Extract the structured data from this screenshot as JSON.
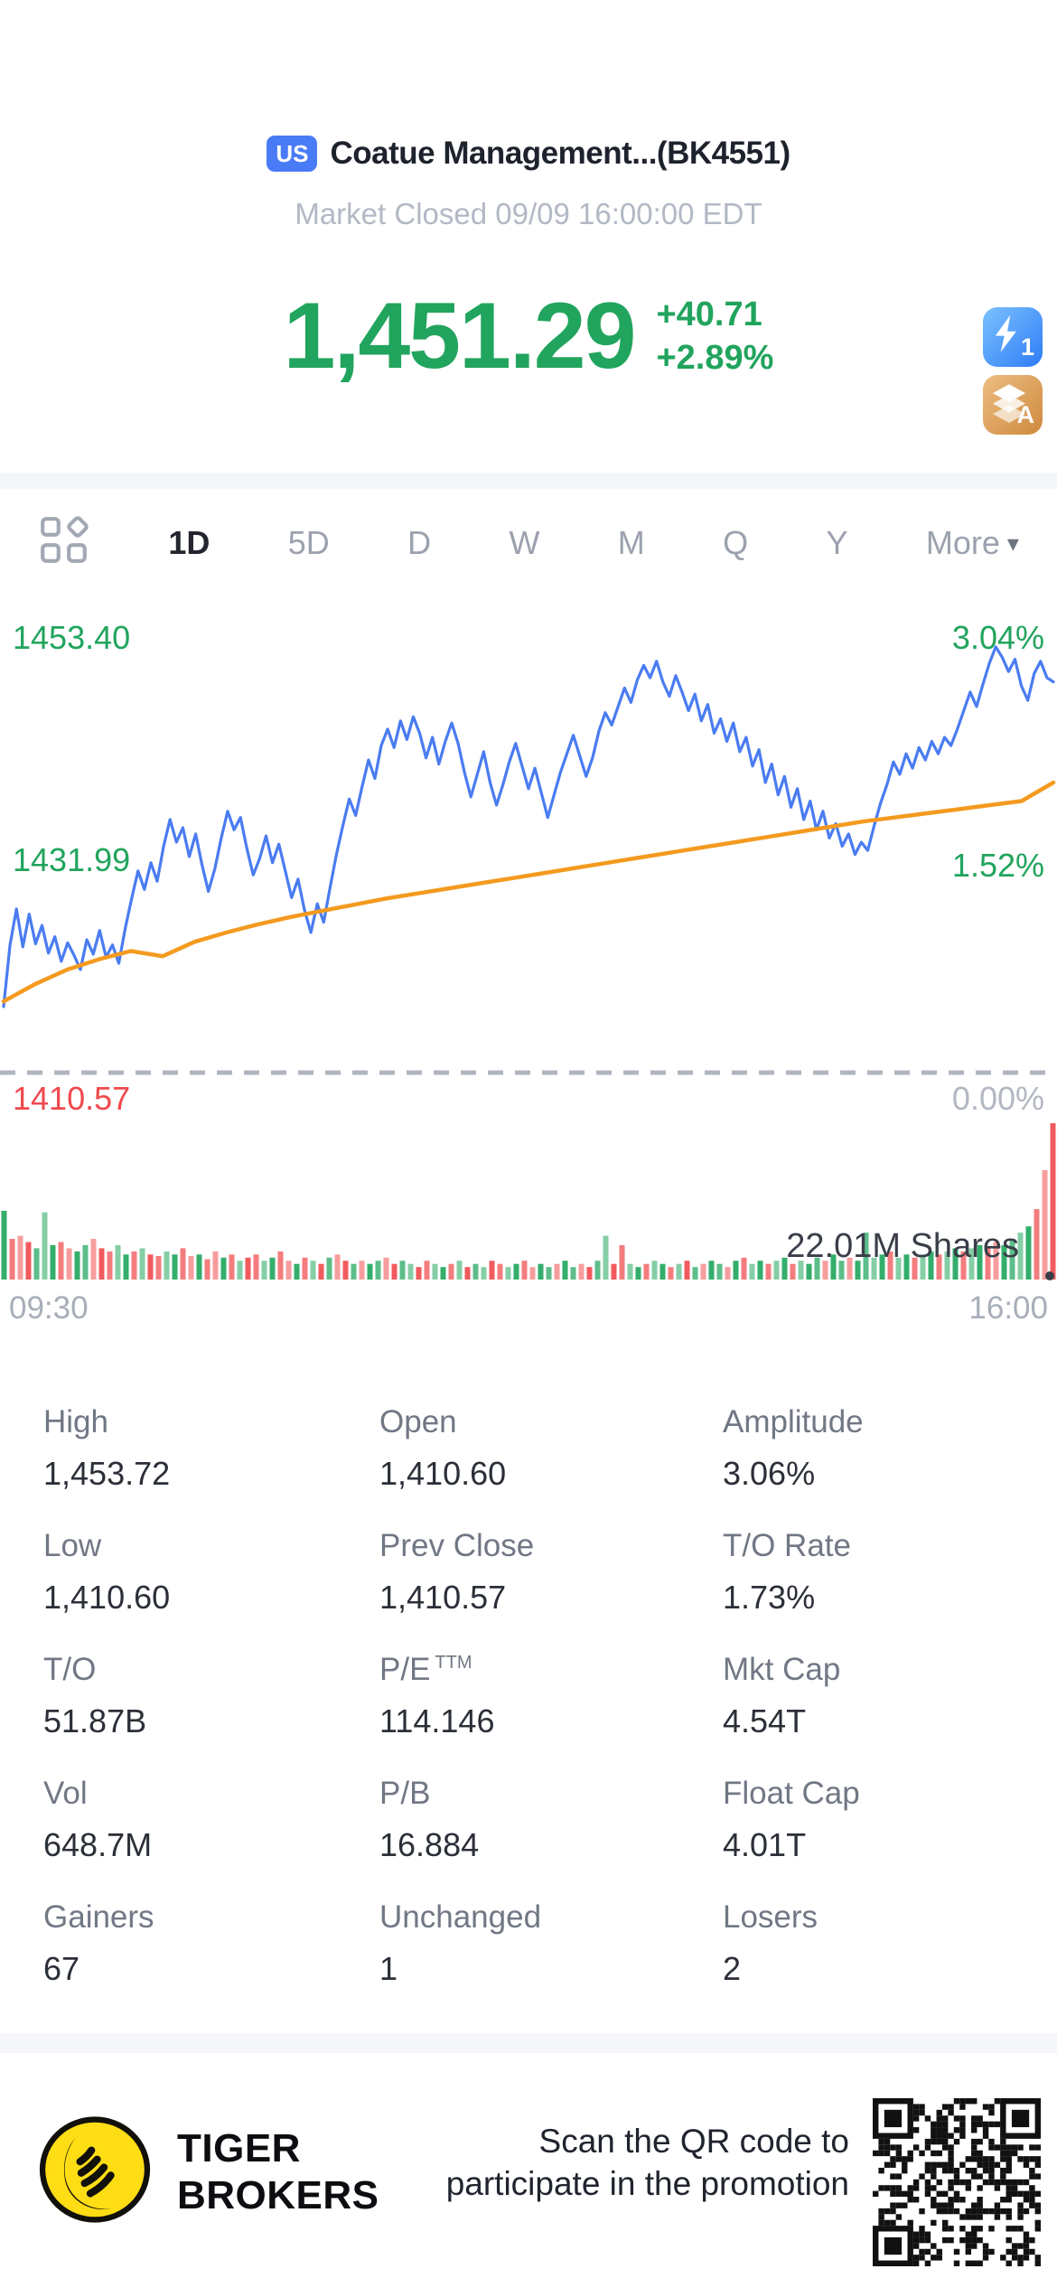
{
  "header": {
    "exchange_badge": "US",
    "title": "Coatue Management...(BK4551)",
    "status_line": "Market Closed 09/09 16:00:00 EDT",
    "price": "1,451.29",
    "change": "+40.71",
    "change_pct": "+2.89%",
    "flash_badge_number": "1",
    "layers_badge_letter": "A"
  },
  "tabs": {
    "items": [
      "1D",
      "5D",
      "D",
      "W",
      "M",
      "Q",
      "Y"
    ],
    "active": "1D",
    "more_label": "More"
  },
  "chart_data": {
    "type": "line",
    "title": "Intraday 1D price chart with average price line and volume",
    "x_axis": {
      "start": "09:30",
      "end": "16:00"
    },
    "ylim": [
      1410.57,
      1453.4
    ],
    "y_labels": {
      "top": "1453.40",
      "mid": "1431.99",
      "bottom": "1410.57"
    },
    "pct_labels": {
      "top": "3.04%",
      "mid": "1.52%",
      "bottom": "0.00%"
    },
    "volume_annotation": "22.01M Shares",
    "grid": "off",
    "series": [
      {
        "name": "price",
        "color": "#4a7cf1",
        "width": 3.2,
        "values": [
          1417.0,
          1423.0,
          1426.5,
          1422.8,
          1426.0,
          1423.1,
          1424.9,
          1422.2,
          1423.8,
          1421.4,
          1423.2,
          1422.0,
          1420.6,
          1423.5,
          1422.1,
          1424.4,
          1421.8,
          1423.0,
          1421.2,
          1424.6,
          1427.5,
          1430.2,
          1428.4,
          1431.0,
          1429.2,
          1432.6,
          1435.2,
          1433.0,
          1434.4,
          1431.6,
          1433.8,
          1430.8,
          1428.2,
          1430.4,
          1433.4,
          1436.0,
          1434.2,
          1435.4,
          1432.4,
          1429.8,
          1431.4,
          1433.6,
          1431.0,
          1432.8,
          1430.2,
          1427.6,
          1429.4,
          1426.4,
          1424.2,
          1427.0,
          1425.2,
          1428.6,
          1431.8,
          1434.6,
          1437.2,
          1435.6,
          1438.4,
          1441.0,
          1439.2,
          1442.4,
          1444.0,
          1442.2,
          1444.8,
          1443.0,
          1445.2,
          1443.6,
          1441.2,
          1443.2,
          1440.6,
          1442.8,
          1444.6,
          1442.6,
          1439.8,
          1437.4,
          1439.6,
          1441.8,
          1438.8,
          1436.6,
          1438.6,
          1440.8,
          1442.6,
          1440.4,
          1438.2,
          1440.2,
          1437.8,
          1435.4,
          1437.6,
          1439.8,
          1441.6,
          1443.4,
          1441.4,
          1439.4,
          1441.2,
          1443.8,
          1445.6,
          1444.4,
          1446.2,
          1448.0,
          1446.6,
          1448.8,
          1450.2,
          1449.0,
          1450.6,
          1448.6,
          1447.2,
          1449.2,
          1447.6,
          1445.8,
          1447.4,
          1444.8,
          1446.4,
          1443.6,
          1445.0,
          1442.8,
          1444.6,
          1441.8,
          1443.2,
          1440.4,
          1442.0,
          1438.8,
          1440.6,
          1437.6,
          1439.4,
          1436.4,
          1438.2,
          1435.2,
          1437.0,
          1434.2,
          1436.0,
          1433.4,
          1434.8,
          1432.6,
          1433.8,
          1431.8,
          1433.0,
          1432.2,
          1434.6,
          1436.8,
          1438.6,
          1440.8,
          1439.6,
          1441.6,
          1440.2,
          1442.2,
          1441.0,
          1442.8,
          1441.6,
          1443.2,
          1442.4,
          1444.0,
          1445.8,
          1447.6,
          1446.2,
          1448.4,
          1450.4,
          1452.0,
          1451.0,
          1449.6,
          1450.8,
          1448.2,
          1446.8,
          1449.4,
          1450.6,
          1449.0,
          1448.6
        ]
      },
      {
        "name": "avg_price",
        "color": "#f49a1f",
        "width": 4.5,
        "values": [
          1417.5,
          1419.2,
          1420.6,
          1421.6,
          1422.4,
          1421.9,
          1423.3,
          1424.2,
          1425.0,
          1425.7,
          1426.3,
          1426.9,
          1427.5,
          1428.0,
          1428.5,
          1429.0,
          1429.5,
          1430.0,
          1430.5,
          1431.0,
          1431.5,
          1432.0,
          1432.5,
          1433.0,
          1433.5,
          1434.0,
          1434.5,
          1435.0,
          1435.4,
          1435.8,
          1436.2,
          1436.6,
          1437.0,
          1438.8
        ]
      }
    ],
    "volume": {
      "up_color": "#33ae6b",
      "down_color": "#f15b5e",
      "bars": [
        [
          44,
          "g"
        ],
        [
          26,
          "r"
        ],
        [
          28,
          "r"
        ],
        [
          24,
          "r"
        ],
        [
          20,
          "g"
        ],
        [
          43,
          "g"
        ],
        [
          22,
          "g"
        ],
        [
          24,
          "r"
        ],
        [
          20,
          "r"
        ],
        [
          18,
          "g"
        ],
        [
          22,
          "g"
        ],
        [
          26,
          "r"
        ],
        [
          20,
          "r"
        ],
        [
          18,
          "r"
        ],
        [
          22,
          "g"
        ],
        [
          16,
          "g"
        ],
        [
          18,
          "r"
        ],
        [
          20,
          "g"
        ],
        [
          16,
          "r"
        ],
        [
          15,
          "r"
        ],
        [
          18,
          "g"
        ],
        [
          16,
          "g"
        ],
        [
          20,
          "r"
        ],
        [
          15,
          "r"
        ],
        [
          16,
          "g"
        ],
        [
          13,
          "r"
        ],
        [
          18,
          "r"
        ],
        [
          14,
          "g"
        ],
        [
          16,
          "r"
        ],
        [
          12,
          "g"
        ],
        [
          14,
          "r"
        ],
        [
          16,
          "r"
        ],
        [
          12,
          "g"
        ],
        [
          14,
          "g"
        ],
        [
          18,
          "r"
        ],
        [
          12,
          "r"
        ],
        [
          10,
          "g"
        ],
        [
          14,
          "r"
        ],
        [
          12,
          "g"
        ],
        [
          10,
          "r"
        ],
        [
          14,
          "g"
        ],
        [
          16,
          "r"
        ],
        [
          12,
          "r"
        ],
        [
          10,
          "g"
        ],
        [
          12,
          "r"
        ],
        [
          10,
          "g"
        ],
        [
          12,
          "g"
        ],
        [
          14,
          "r"
        ],
        [
          10,
          "r"
        ],
        [
          12,
          "g"
        ],
        [
          10,
          "g"
        ],
        [
          8,
          "r"
        ],
        [
          12,
          "r"
        ],
        [
          10,
          "g"
        ],
        [
          8,
          "g"
        ],
        [
          10,
          "r"
        ],
        [
          12,
          "g"
        ],
        [
          8,
          "r"
        ],
        [
          10,
          "g"
        ],
        [
          8,
          "g"
        ],
        [
          12,
          "r"
        ],
        [
          10,
          "r"
        ],
        [
          8,
          "g"
        ],
        [
          10,
          "g"
        ],
        [
          12,
          "r"
        ],
        [
          8,
          "r"
        ],
        [
          10,
          "g"
        ],
        [
          8,
          "g"
        ],
        [
          10,
          "r"
        ],
        [
          12,
          "g"
        ],
        [
          8,
          "g"
        ],
        [
          10,
          "r"
        ],
        [
          8,
          "r"
        ],
        [
          12,
          "g"
        ],
        [
          28,
          "g"
        ],
        [
          10,
          "r"
        ],
        [
          22,
          "r"
        ],
        [
          10,
          "g"
        ],
        [
          8,
          "g"
        ],
        [
          10,
          "r"
        ],
        [
          12,
          "g"
        ],
        [
          10,
          "g"
        ],
        [
          8,
          "r"
        ],
        [
          10,
          "g"
        ],
        [
          12,
          "r"
        ],
        [
          8,
          "g"
        ],
        [
          10,
          "r"
        ],
        [
          12,
          "g"
        ],
        [
          10,
          "g"
        ],
        [
          8,
          "r"
        ],
        [
          12,
          "g"
        ],
        [
          14,
          "r"
        ],
        [
          10,
          "g"
        ],
        [
          12,
          "g"
        ],
        [
          10,
          "r"
        ],
        [
          12,
          "g"
        ],
        [
          14,
          "g"
        ],
        [
          10,
          "r"
        ],
        [
          12,
          "g"
        ],
        [
          10,
          "g"
        ],
        [
          14,
          "g"
        ],
        [
          12,
          "r"
        ],
        [
          16,
          "g"
        ],
        [
          12,
          "g"
        ],
        [
          14,
          "r"
        ],
        [
          12,
          "g"
        ],
        [
          30,
          "g"
        ],
        [
          14,
          "g"
        ],
        [
          16,
          "g"
        ],
        [
          18,
          "r"
        ],
        [
          14,
          "g"
        ],
        [
          16,
          "g"
        ],
        [
          14,
          "r"
        ],
        [
          16,
          "g"
        ],
        [
          18,
          "g"
        ],
        [
          16,
          "r"
        ],
        [
          18,
          "g"
        ],
        [
          20,
          "g"
        ],
        [
          18,
          "r"
        ],
        [
          20,
          "g"
        ],
        [
          22,
          "g"
        ],
        [
          20,
          "r"
        ],
        [
          24,
          "r"
        ],
        [
          22,
          "g"
        ],
        [
          26,
          "g"
        ],
        [
          30,
          "g"
        ],
        [
          34,
          "g"
        ],
        [
          45,
          "r"
        ],
        [
          70,
          "r"
        ],
        [
          100,
          "r"
        ]
      ]
    }
  },
  "stats": {
    "rows": [
      [
        {
          "label": "High",
          "value": "1,453.72"
        },
        {
          "label": "Open",
          "value": "1,410.60"
        },
        {
          "label": "Amplitude",
          "value": "3.06%"
        }
      ],
      [
        {
          "label": "Low",
          "value": "1,410.60"
        },
        {
          "label": "Prev Close",
          "value": "1,410.57"
        },
        {
          "label": "T/O Rate",
          "value": "1.73%"
        }
      ],
      [
        {
          "label": "T/O",
          "value": "51.87B"
        },
        {
          "label": "P/E",
          "sup": "TTM",
          "value": "114.146"
        },
        {
          "label": "Mkt Cap",
          "value": "4.54T"
        }
      ],
      [
        {
          "label": "Vol",
          "value": "648.7M"
        },
        {
          "label": "P/B",
          "value": "16.884"
        },
        {
          "label": "Float Cap",
          "value": "4.01T"
        }
      ],
      [
        {
          "label": "Gainers",
          "value": "67"
        },
        {
          "label": "Unchanged",
          "value": "1"
        },
        {
          "label": "Losers",
          "value": "2"
        }
      ]
    ]
  },
  "footer": {
    "brand_line1": "TIGER",
    "brand_line2": "BROKERS",
    "promo_line1": "Scan the QR code to",
    "promo_line2": "participate in the promotion"
  },
  "colors": {
    "up_green": "#21a45d",
    "down_red": "#f0494d",
    "price_line_blue": "#4a7cf1",
    "avg_line_orange": "#f49a1f",
    "muted_gray": "#b2b8c4",
    "band_gray": "#f5f6fa",
    "badge_blue": "#4a7bf7"
  }
}
